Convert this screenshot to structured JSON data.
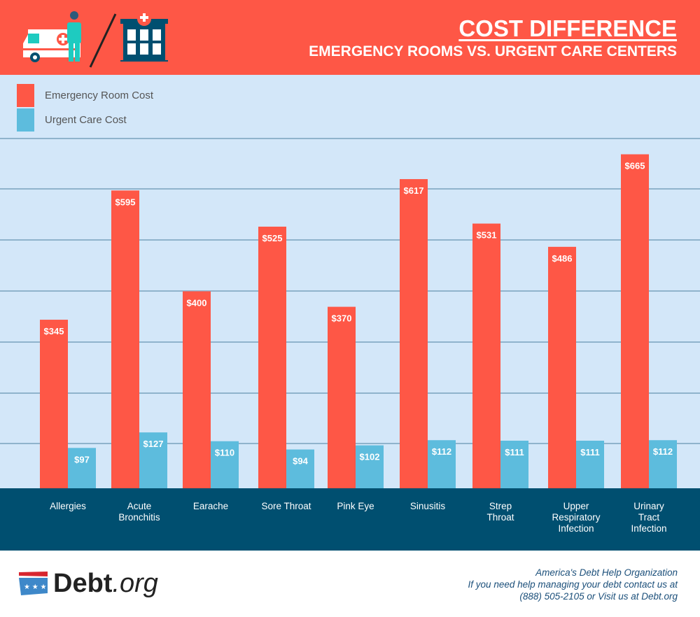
{
  "header": {
    "title": "COST DIFFERENCE",
    "subtitle": "EMERGENCY ROOMS VS. URGENT CARE CENTERS"
  },
  "footer": {
    "logo_text": "Debt.org",
    "line1": "America's Debt Help Organization",
    "line2": "If you need help managing your debt contact us at",
    "line3": "(888) 505-2105 or Visit us at Debt.org"
  },
  "colors": {
    "er": "#fe5746",
    "uc": "#5dbcdd",
    "header": "#fe5746",
    "axis_band": "#004f70",
    "plot_bg": "#d3e7f9"
  },
  "chart_data": {
    "type": "bar",
    "title": "COST DIFFERENCE",
    "subtitle": "EMERGENCY ROOMS VS. URGENT CARE CENTERS",
    "legend_placement": "top-left",
    "grid": true,
    "categories": [
      "Allergies",
      "Acute Bronchitis",
      "Earache",
      "Sore Throat",
      "Pink Eye",
      "Sinusitis",
      "Strep Throat",
      "Upper Respiratory Infection",
      "Urinary Tract Infection"
    ],
    "series": [
      {
        "name": "Emergency Room Cost",
        "color": "#fe5746",
        "values": [
          345,
          595,
          400,
          525,
          370,
          617,
          531,
          486,
          665
        ],
        "labels": [
          "$345",
          "$595",
          "$400",
          "$525",
          "$370",
          "$617",
          "$531",
          "$486",
          "$665"
        ]
      },
      {
        "name": "Urgent Care Cost",
        "color": "#5dbcdd",
        "values": [
          97,
          127,
          110,
          94,
          102,
          112,
          111,
          111,
          112
        ],
        "labels": [
          "$97",
          "$127",
          "$110",
          "$94",
          "$102",
          "$112",
          "$111",
          "$111",
          "$112"
        ]
      }
    ]
  }
}
